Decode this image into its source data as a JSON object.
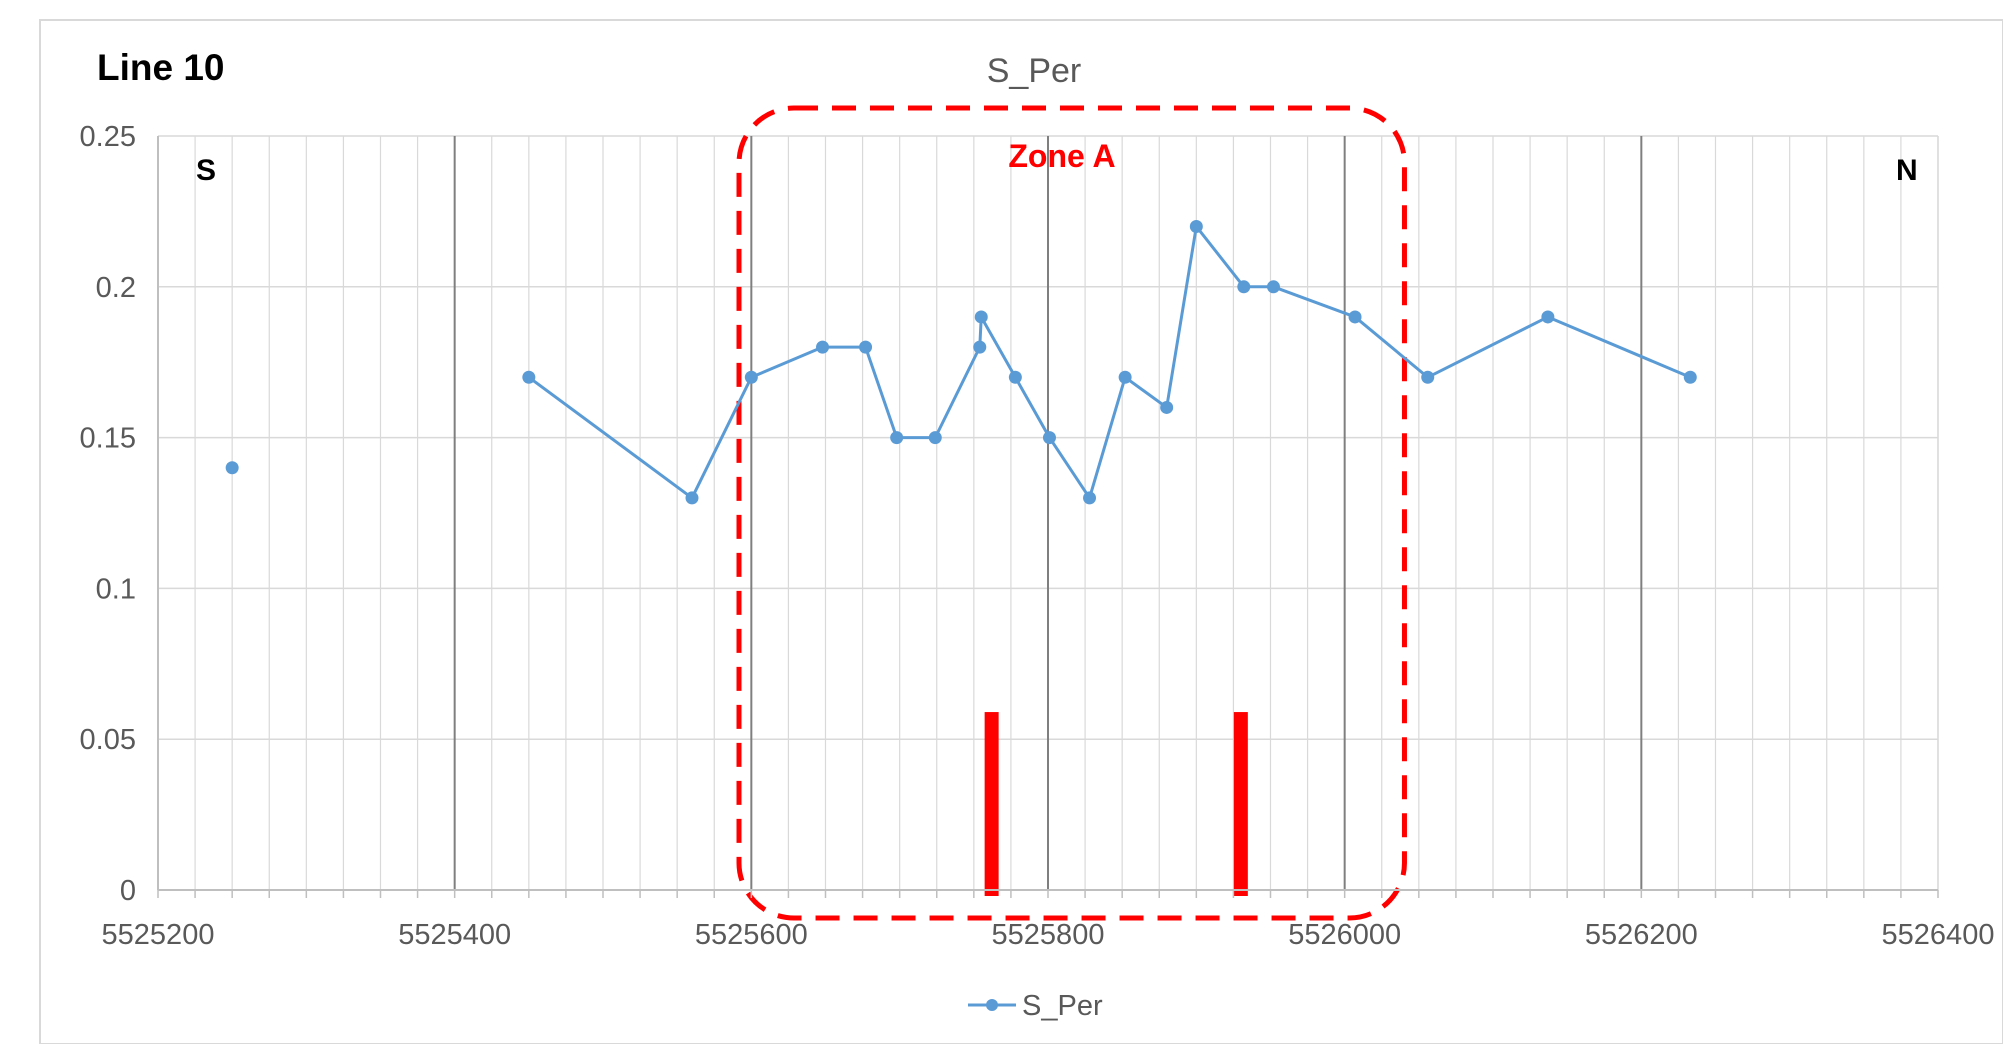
{
  "chart_data": {
    "type": "line",
    "title": "S_Per",
    "line_label": "Line 10",
    "direction_left": "S",
    "direction_right": "N",
    "zone_label": "Zone A",
    "xlabel": "",
    "ylabel": "",
    "xlim": [
      5525200,
      5526400
    ],
    "ylim": [
      0,
      0.25
    ],
    "x_ticks": [
      5525200,
      5525400,
      5525600,
      5525800,
      5526000,
      5526200,
      5526400
    ],
    "x_tick_labels": [
      "5525200",
      "5525400",
      "5525600",
      "5525800",
      "5526000",
      "5526200",
      "5526400"
    ],
    "y_ticks": [
      0,
      0.05,
      0.1,
      0.15,
      0.2,
      0.25
    ],
    "y_tick_labels": [
      "0",
      "0.05",
      "0.1",
      "0.15",
      "0.2",
      "0.25"
    ],
    "grid": true,
    "legend_position": "bottom",
    "series": [
      {
        "name": "S_Per",
        "color": "#5b9bd5",
        "isolated_point": {
          "x": 5525250,
          "y": 0.14
        },
        "points": [
          {
            "x": 5525450,
            "y": 0.17
          },
          {
            "x": 5525560,
            "y": 0.13
          },
          {
            "x": 5525600,
            "y": 0.17
          },
          {
            "x": 5525648,
            "y": 0.18
          },
          {
            "x": 5525677,
            "y": 0.18
          },
          {
            "x": 5525698,
            "y": 0.15
          },
          {
            "x": 5525724,
            "y": 0.15
          },
          {
            "x": 5525754,
            "y": 0.18
          },
          {
            "x": 5525755,
            "y": 0.19
          },
          {
            "x": 5525778,
            "y": 0.17
          },
          {
            "x": 5525801,
            "y": 0.15
          },
          {
            "x": 5525828,
            "y": 0.13
          },
          {
            "x": 5525852,
            "y": 0.17
          },
          {
            "x": 5525880,
            "y": 0.16
          },
          {
            "x": 5525900,
            "y": 0.22
          },
          {
            "x": 5525932,
            "y": 0.2
          },
          {
            "x": 5525952,
            "y": 0.2
          },
          {
            "x": 5526007,
            "y": 0.19
          },
          {
            "x": 5526056,
            "y": 0.17
          },
          {
            "x": 5526137,
            "y": 0.19
          },
          {
            "x": 5526233,
            "y": 0.17
          }
        ]
      }
    ],
    "zone": {
      "x_start": 5525620,
      "x_end": 5526012,
      "color": "#ff0000"
    },
    "markers": [
      {
        "x": 5525762,
        "y": 0.059
      },
      {
        "x": 5525930,
        "y": 0.059
      }
    ],
    "major_vlines": [
      5525400,
      5525600,
      5525800,
      5526000,
      5526200
    ]
  }
}
